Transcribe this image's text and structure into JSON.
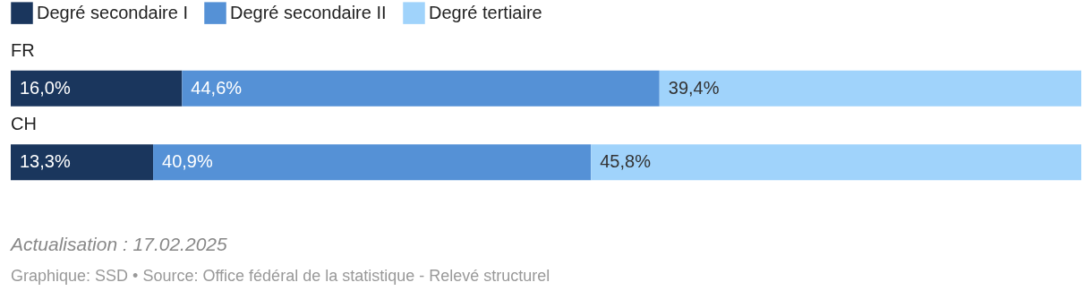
{
  "chart_data": {
    "type": "bar",
    "orientation": "horizontal",
    "stacked": true,
    "legend": "top left",
    "categories": [
      "FR",
      "CH"
    ],
    "series": [
      {
        "name": "Degré secondaire I",
        "color": "#1a365d",
        "values": [
          16.0,
          13.3
        ],
        "value_labels": [
          "16,0%",
          "13,3%"
        ]
      },
      {
        "name": "Degré secondaire II",
        "color": "#5591d6",
        "values": [
          44.6,
          40.9
        ],
        "value_labels": [
          "44,6%",
          "40,9%"
        ]
      },
      {
        "name": "Degré tertiaire",
        "color": "#a0d3fb",
        "values": [
          39.4,
          45.8
        ],
        "value_labels": [
          "39,4%",
          "45,8%"
        ]
      }
    ],
    "annotations": [
      "Actualisation : 17.02.2025",
      "Graphique: SSD • Source: Office fédéral de la statistique - Relevé structurel"
    ]
  }
}
